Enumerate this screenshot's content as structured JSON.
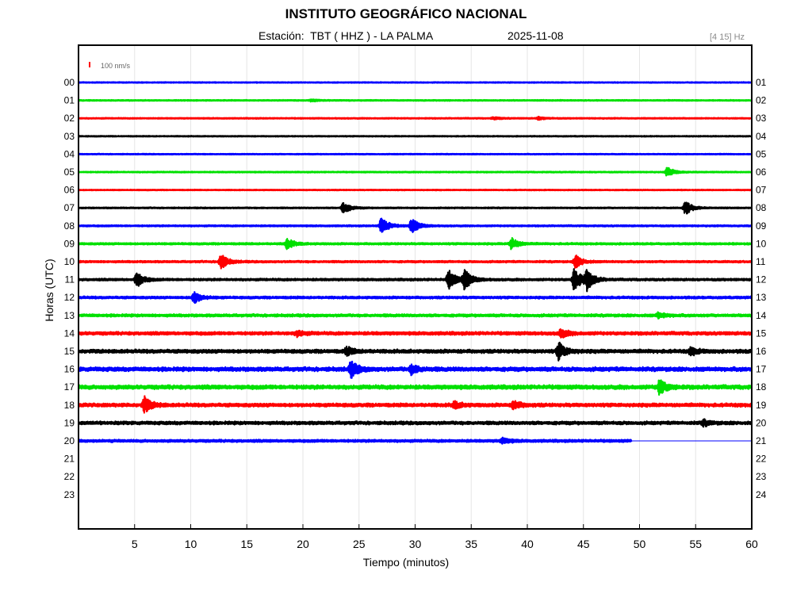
{
  "header": {
    "title": "INSTITUTO GEOGRÁFICO NACIONAL",
    "station_label": "Estación:  TBT ( HHZ ) - LA PALMA",
    "date": "2025-11-08",
    "filter": "[4 15] Hz"
  },
  "chart_data": {
    "type": "line",
    "title": "INSTITUTO GEOGRÁFICO NACIONAL",
    "xlabel": "Tiempo (minutos)",
    "ylabel": "Horas (UTC)",
    "xlim": [
      0,
      60
    ],
    "x_ticks": [
      5,
      10,
      15,
      20,
      25,
      30,
      35,
      40,
      45,
      50,
      55,
      60
    ],
    "grid": true,
    "scale_bar_label": "100 nm/s",
    "scale_bar_color": "#ff0000",
    "left_hour_labels": [
      "00",
      "01",
      "02",
      "03",
      "04",
      "05",
      "06",
      "07",
      "08",
      "09",
      "10",
      "11",
      "12",
      "13",
      "14",
      "15",
      "16",
      "17",
      "18",
      "19",
      "20",
      "21",
      "22",
      "23"
    ],
    "right_hour_labels": [
      "01",
      "02",
      "03",
      "04",
      "05",
      "06",
      "07",
      "08",
      "09",
      "10",
      "11",
      "12",
      "13",
      "14",
      "15",
      "16",
      "17",
      "18",
      "19",
      "20",
      "21",
      "22",
      "23",
      "24"
    ],
    "trace_color_cycle": [
      "#0000ff",
      "#00e000",
      "#ff0000",
      "#000000"
    ],
    "data_end_minute": 49.3,
    "traces": [
      {
        "hour": 0,
        "noise": 0.6,
        "events": []
      },
      {
        "hour": 1,
        "noise": 0.7,
        "events": [
          {
            "t": 20.8,
            "amp": 1.5
          }
        ]
      },
      {
        "hour": 2,
        "noise": 0.7,
        "events": [
          {
            "t": 37.0,
            "amp": 1.6
          },
          {
            "t": 41.0,
            "amp": 1.8
          }
        ]
      },
      {
        "hour": 3,
        "noise": 0.6,
        "events": []
      },
      {
        "hour": 4,
        "noise": 0.6,
        "events": []
      },
      {
        "hour": 5,
        "noise": 0.7,
        "events": [
          {
            "t": 52.5,
            "amp": 6.5
          }
        ]
      },
      {
        "hour": 6,
        "noise": 0.6,
        "events": []
      },
      {
        "hour": 7,
        "noise": 0.8,
        "events": [
          {
            "t": 23.6,
            "amp": 7.5
          },
          {
            "t": 54.1,
            "amp": 8.5
          }
        ]
      },
      {
        "hour": 8,
        "noise": 1.0,
        "events": [
          {
            "t": 27.0,
            "amp": 11.5
          },
          {
            "t": 29.7,
            "amp": 9.5
          }
        ]
      },
      {
        "hour": 9,
        "noise": 1.3,
        "events": [
          {
            "t": 18.6,
            "amp": 6.5
          },
          {
            "t": 38.6,
            "amp": 7.0
          }
        ]
      },
      {
        "hour": 10,
        "noise": 1.3,
        "events": [
          {
            "t": 12.7,
            "amp": 9.5
          },
          {
            "t": 44.3,
            "amp": 8.0
          }
        ]
      },
      {
        "hour": 11,
        "noise": 1.5,
        "events": [
          {
            "t": 5.2,
            "amp": 9.0
          },
          {
            "t": 33.0,
            "amp": 12.0
          },
          {
            "t": 34.4,
            "amp": 12.0
          },
          {
            "t": 44.2,
            "amp": 15.0
          },
          {
            "t": 45.3,
            "amp": 12.0
          }
        ]
      },
      {
        "hour": 12,
        "noise": 1.6,
        "events": [
          {
            "t": 10.3,
            "amp": 7.5
          }
        ]
      },
      {
        "hour": 13,
        "noise": 1.8,
        "events": [
          {
            "t": 51.7,
            "amp": 3.5
          }
        ]
      },
      {
        "hour": 14,
        "noise": 2.2,
        "events": [
          {
            "t": 19.5,
            "amp": 3.5
          },
          {
            "t": 43.0,
            "amp": 5.0
          }
        ]
      },
      {
        "hour": 15,
        "noise": 2.5,
        "events": [
          {
            "t": 23.9,
            "amp": 5.0
          },
          {
            "t": 42.8,
            "amp": 10.5
          },
          {
            "t": 54.6,
            "amp": 4.5
          }
        ]
      },
      {
        "hour": 16,
        "noise": 2.8,
        "events": [
          {
            "t": 24.3,
            "amp": 9.5
          },
          {
            "t": 29.7,
            "amp": 5.5
          }
        ]
      },
      {
        "hour": 17,
        "noise": 2.8,
        "events": [
          {
            "t": 51.8,
            "amp": 9.0
          }
        ]
      },
      {
        "hour": 18,
        "noise": 2.4,
        "events": [
          {
            "t": 5.9,
            "amp": 9.5
          },
          {
            "t": 33.5,
            "amp": 4.0
          },
          {
            "t": 38.8,
            "amp": 5.0
          }
        ]
      },
      {
        "hour": 19,
        "noise": 2.2,
        "events": [
          {
            "t": 55.7,
            "amp": 3.5
          }
        ]
      },
      {
        "hour": 20,
        "noise": 1.8,
        "events": [
          {
            "t": 37.8,
            "amp": 3.5
          }
        ]
      },
      {
        "hour": 21,
        "noise": 0,
        "events": []
      },
      {
        "hour": 22,
        "noise": 0,
        "events": []
      },
      {
        "hour": 23,
        "noise": 0,
        "events": []
      }
    ]
  }
}
